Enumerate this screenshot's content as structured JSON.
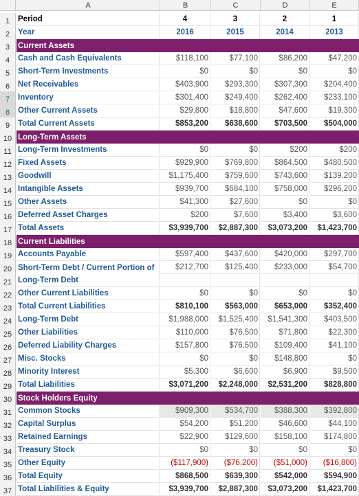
{
  "columns": [
    "A",
    "B",
    "C",
    "D",
    "E"
  ],
  "rows": [
    {
      "n": "1",
      "type": "period",
      "label": "Period",
      "v": [
        "4",
        "3",
        "2",
        "1"
      ]
    },
    {
      "n": "2",
      "type": "year",
      "label": "Year",
      "v": [
        "2016",
        "2015",
        "2014",
        "2013"
      ]
    },
    {
      "n": "3",
      "type": "section",
      "label": "Current Assets"
    },
    {
      "n": "4",
      "type": "data",
      "label": "Cash and Cash Equivalents",
      "v": [
        "$118,100",
        "$77,100",
        "$86,200",
        "$47,200"
      ]
    },
    {
      "n": "5",
      "type": "data",
      "label": "Short-Term Investments",
      "v": [
        "$0",
        "$0",
        "$0",
        "$0"
      ]
    },
    {
      "n": "6",
      "type": "data",
      "label": "Net Receivables",
      "v": [
        "$403,900",
        "$293,300",
        "$307,300",
        "$204,400"
      ]
    },
    {
      "n": "7",
      "type": "data",
      "label": "Inventory",
      "v": [
        "$301,400",
        "$249,400",
        "$262,400",
        "$233,100"
      ],
      "sel": true
    },
    {
      "n": "8",
      "type": "data",
      "label": "Other Current Assets",
      "v": [
        "$29,800",
        "$18,800",
        "$47,600",
        "$19,300"
      ],
      "sel": true
    },
    {
      "n": "9",
      "type": "total",
      "label": "Total Current Assets",
      "v": [
        "$853,200",
        "$638,600",
        "$703,500",
        "$504,000"
      ]
    },
    {
      "n": "10",
      "type": "section",
      "label": "Long-Term Assets"
    },
    {
      "n": "11",
      "type": "data",
      "label": "Long-Term Investments",
      "v": [
        "$0",
        "$0",
        "$200",
        "$200"
      ]
    },
    {
      "n": "12",
      "type": "data",
      "label": "Fixed Assets",
      "v": [
        "$929,900",
        "$769,800",
        "$864,500",
        "$480,500"
      ]
    },
    {
      "n": "13",
      "type": "data",
      "label": "Goodwill",
      "v": [
        "$1,175,400",
        "$759,600",
        "$743,600",
        "$139,200"
      ]
    },
    {
      "n": "14",
      "type": "data",
      "label": "Intangible Assets",
      "v": [
        "$939,700",
        "$684,100",
        "$758,000",
        "$296,200"
      ]
    },
    {
      "n": "15",
      "type": "data",
      "label": "Other Assets",
      "v": [
        "$41,300",
        "$27,600",
        "$0",
        "$0"
      ]
    },
    {
      "n": "16",
      "type": "data",
      "label": "Deferred Asset Charges",
      "v": [
        "$200",
        "$7,600",
        "$3,400",
        "$3,600"
      ]
    },
    {
      "n": "17",
      "type": "total",
      "label": "Total Assets",
      "v": [
        "$3,939,700",
        "$2,887,300",
        "$3,073,200",
        "$1,423,700"
      ]
    },
    {
      "n": "18",
      "type": "section",
      "label": "Current Liabilities"
    },
    {
      "n": "19",
      "type": "data",
      "label": "Accounts Payable",
      "v": [
        "$597,400",
        "$437,600",
        "$420,000",
        "$297,700"
      ]
    },
    {
      "n": "20",
      "type": "data2",
      "label": "Short-Term Debt / Current Portion of",
      "v": [
        "$212,700",
        "$125,400",
        "$233,000",
        "$54,700"
      ]
    },
    {
      "n": "21",
      "type": "cont",
      "label": "Long-Term Debt"
    },
    {
      "n": "22",
      "type": "data",
      "label": "Other Current Liabilities",
      "v": [
        "$0",
        "$0",
        "$0",
        "$0"
      ]
    },
    {
      "n": "23",
      "type": "total",
      "label": "Total Current Liabilities",
      "v": [
        "$810,100",
        "$563,000",
        "$653,000",
        "$352,400"
      ]
    },
    {
      "n": "24",
      "type": "data",
      "label": "Long-Term Debt",
      "v": [
        "$1,988,000",
        "$1,525,400",
        "$1,541,300",
        "$403,500"
      ]
    },
    {
      "n": "25",
      "type": "data",
      "label": "Other Liabilities",
      "v": [
        "$110,000",
        "$76,500",
        "$71,800",
        "$22,300"
      ]
    },
    {
      "n": "26",
      "type": "data",
      "label": "Deferred Liability Charges",
      "v": [
        "$157,800",
        "$76,500",
        "$109,400",
        "$41,100"
      ]
    },
    {
      "n": "27",
      "type": "data",
      "label": "Misc. Stocks",
      "v": [
        "$0",
        "$0",
        "$148,800",
        "$0"
      ]
    },
    {
      "n": "28",
      "type": "data",
      "label": "Minority Interest",
      "v": [
        "$5,300",
        "$6,600",
        "$6,900",
        "$9,500"
      ]
    },
    {
      "n": "29",
      "type": "total",
      "label": "Total Liabilities",
      "v": [
        "$3,071,200",
        "$2,248,000",
        "$2,531,200",
        "$828,800"
      ]
    },
    {
      "n": "30",
      "type": "section",
      "label": "Stock Holders Equity"
    },
    {
      "n": "31",
      "type": "shaded",
      "label": "Common Stocks",
      "v": [
        "$909,300",
        "$534,700",
        "$388,300",
        "$392,800"
      ]
    },
    {
      "n": "32",
      "type": "data",
      "label": "Capital Surplus",
      "v": [
        "$54,200",
        "$51,200",
        "$46,600",
        "$44,100"
      ]
    },
    {
      "n": "33",
      "type": "data",
      "label": "Retained Earnings",
      "v": [
        "$22,900",
        "$129,600",
        "$158,100",
        "$174,800"
      ]
    },
    {
      "n": "34",
      "type": "data",
      "label": "Treasury Stock",
      "v": [
        "$0",
        "$0",
        "$0",
        "$0"
      ]
    },
    {
      "n": "35",
      "type": "neg",
      "label": "Other Equity",
      "v": [
        "($117,900)",
        "($76,200)",
        "($51,000)",
        "($16,800)"
      ]
    },
    {
      "n": "36",
      "type": "total",
      "label": "Total Equity",
      "v": [
        "$868,500",
        "$639,300",
        "$542,000",
        "$594,900"
      ]
    },
    {
      "n": "37",
      "type": "total",
      "label": "Total Liabilities & Equity",
      "v": [
        "$3,939,700",
        "$2,887,300",
        "$3,073,200",
        "$1,423,700"
      ]
    }
  ]
}
